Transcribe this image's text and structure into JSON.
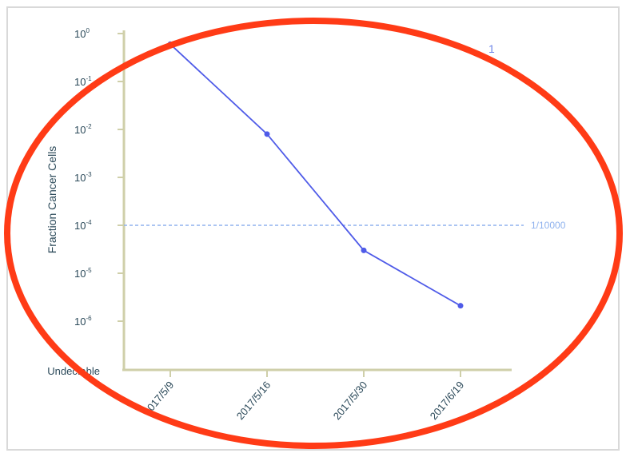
{
  "chart_data": {
    "type": "line",
    "ylabel": "Fraction Cancer Cells",
    "yscale": "log",
    "yticks": [
      {
        "base": "10",
        "exp": "0"
      },
      {
        "base": "10",
        "exp": "-1"
      },
      {
        "base": "10",
        "exp": "-2"
      },
      {
        "base": "10",
        "exp": "-3"
      },
      {
        "base": "10",
        "exp": "-4"
      },
      {
        "base": "10",
        "exp": "-5"
      },
      {
        "base": "10",
        "exp": "-6"
      }
    ],
    "ylim": [
      1e-07,
      1
    ],
    "undetectable_label": "Undectable",
    "categories": [
      "2017/5/9",
      "2017/5/16",
      "2017/5/30",
      "2017/6/19"
    ],
    "series": [
      {
        "values": [
          0.6,
          0.008,
          3e-05,
          2.1e-06
        ],
        "color": "#4f5be8"
      }
    ],
    "reference_line": {
      "value": 0.0001,
      "label": "1/10000",
      "color": "#8fb2ee"
    },
    "legend_fragment": "1",
    "axis_color": "#cfcfa9",
    "annotation_ellipse_color": "#ff3b16"
  }
}
